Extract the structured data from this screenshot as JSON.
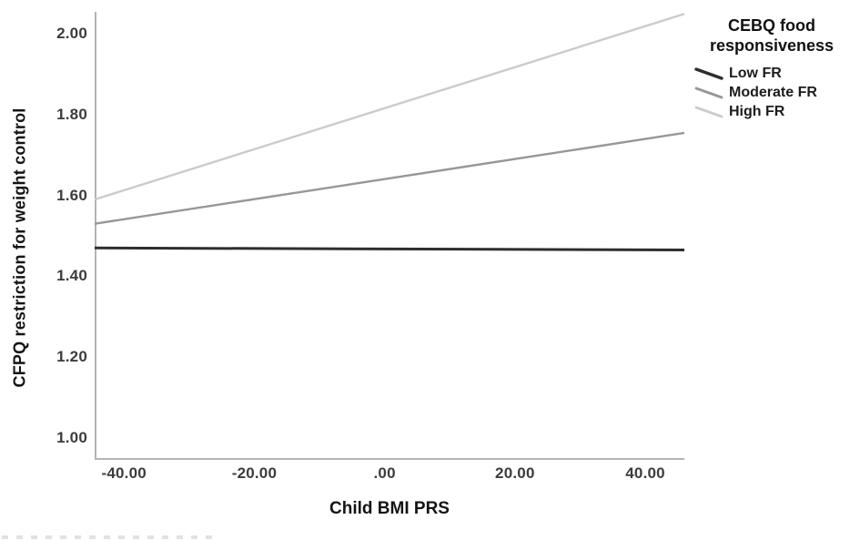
{
  "colors": {
    "background": "#ffffff",
    "axis_line": "#b4b4b4",
    "tick_label": "#3c3c3c",
    "axis_title": "#141414",
    "legend_title": "#111111",
    "legend_label": "#1c1c1c"
  },
  "legend": {
    "title": "CEBQ food responsiveness",
    "position": "top-right",
    "items": [
      {
        "label": "Low FR",
        "swatch": "diagonal-line",
        "color": "#2e2e2e"
      },
      {
        "label": "Moderate FR",
        "swatch": "diagonal-line",
        "color": "#979797"
      },
      {
        "label": "High FR",
        "swatch": "diagonal-line",
        "color": "#cbcbcb"
      }
    ]
  },
  "chart_data": {
    "type": "line",
    "title": "",
    "xlabel": "Child BMI PRS",
    "ylabel": "CFPQ restriction for weight control",
    "xlim": [
      -44.5,
      46
    ],
    "ylim": [
      0.945,
      2.055
    ],
    "grid": false,
    "legend_position": "top-right",
    "xticks": {
      "values": [
        -40,
        -20,
        0,
        20,
        40
      ],
      "labels": [
        "-40.00",
        "-20.00",
        ".00",
        "20.00",
        "40.00"
      ]
    },
    "yticks": {
      "values": [
        1.0,
        1.2,
        1.4,
        1.6,
        1.8,
        2.0
      ],
      "labels": [
        "1.00",
        "1.20",
        "1.40",
        "1.60",
        "1.80",
        "2.00"
      ]
    },
    "x_endpoints": [
      -44.5,
      46
    ],
    "series": [
      {
        "name": "Low FR",
        "values": [
          1.47,
          1.465
        ],
        "color": "#2e2e2e",
        "width": 3.0
      },
      {
        "name": "Moderate FR",
        "values": [
          1.53,
          1.755
        ],
        "color": "#979797",
        "width": 2.4
      },
      {
        "name": "High FR",
        "values": [
          1.59,
          2.05
        ],
        "color": "#cbcbcb",
        "width": 2.4
      }
    ]
  }
}
